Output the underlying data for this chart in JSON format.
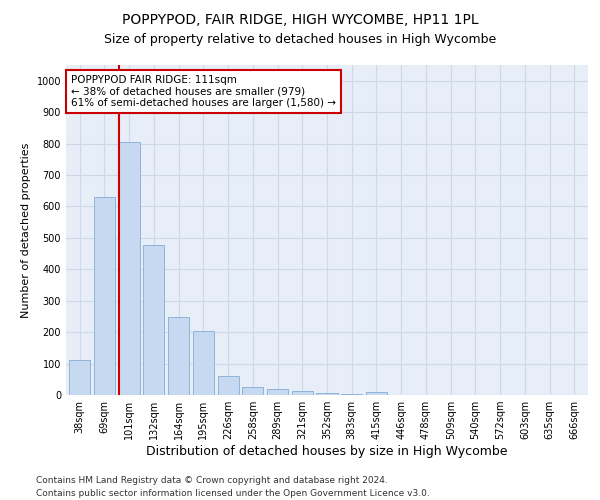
{
  "title": "POPPYPOD, FAIR RIDGE, HIGH WYCOMBE, HP11 1PL",
  "subtitle": "Size of property relative to detached houses in High Wycombe",
  "xlabel": "Distribution of detached houses by size in High Wycombe",
  "ylabel": "Number of detached properties",
  "categories": [
    "38sqm",
    "69sqm",
    "101sqm",
    "132sqm",
    "164sqm",
    "195sqm",
    "226sqm",
    "258sqm",
    "289sqm",
    "321sqm",
    "352sqm",
    "383sqm",
    "415sqm",
    "446sqm",
    "478sqm",
    "509sqm",
    "540sqm",
    "572sqm",
    "603sqm",
    "635sqm",
    "666sqm"
  ],
  "values": [
    110,
    630,
    805,
    478,
    248,
    205,
    60,
    25,
    18,
    12,
    5,
    3,
    8,
    0,
    0,
    0,
    0,
    0,
    0,
    0,
    0
  ],
  "bar_color": "#c6d9f0",
  "bar_edge_color": "#8fb4d9",
  "highlight_line_color": "#cc0000",
  "highlight_line_index": 2,
  "annotation_text": "POPPYPOD FAIR RIDGE: 111sqm\n← 38% of detached houses are smaller (979)\n61% of semi-detached houses are larger (1,580) →",
  "annotation_box_color": "#ffffff",
  "annotation_box_edge_color": "#cc0000",
  "ylim": [
    0,
    1050
  ],
  "yticks": [
    0,
    100,
    200,
    300,
    400,
    500,
    600,
    700,
    800,
    900,
    1000
  ],
  "grid_color": "#d0d8e8",
  "background_color": "#e8eef8",
  "footer_line1": "Contains HM Land Registry data © Crown copyright and database right 2024.",
  "footer_line2": "Contains public sector information licensed under the Open Government Licence v3.0.",
  "title_fontsize": 10,
  "subtitle_fontsize": 9,
  "xlabel_fontsize": 9,
  "ylabel_fontsize": 8,
  "tick_fontsize": 7,
  "annotation_fontsize": 7.5,
  "footer_fontsize": 6.5
}
